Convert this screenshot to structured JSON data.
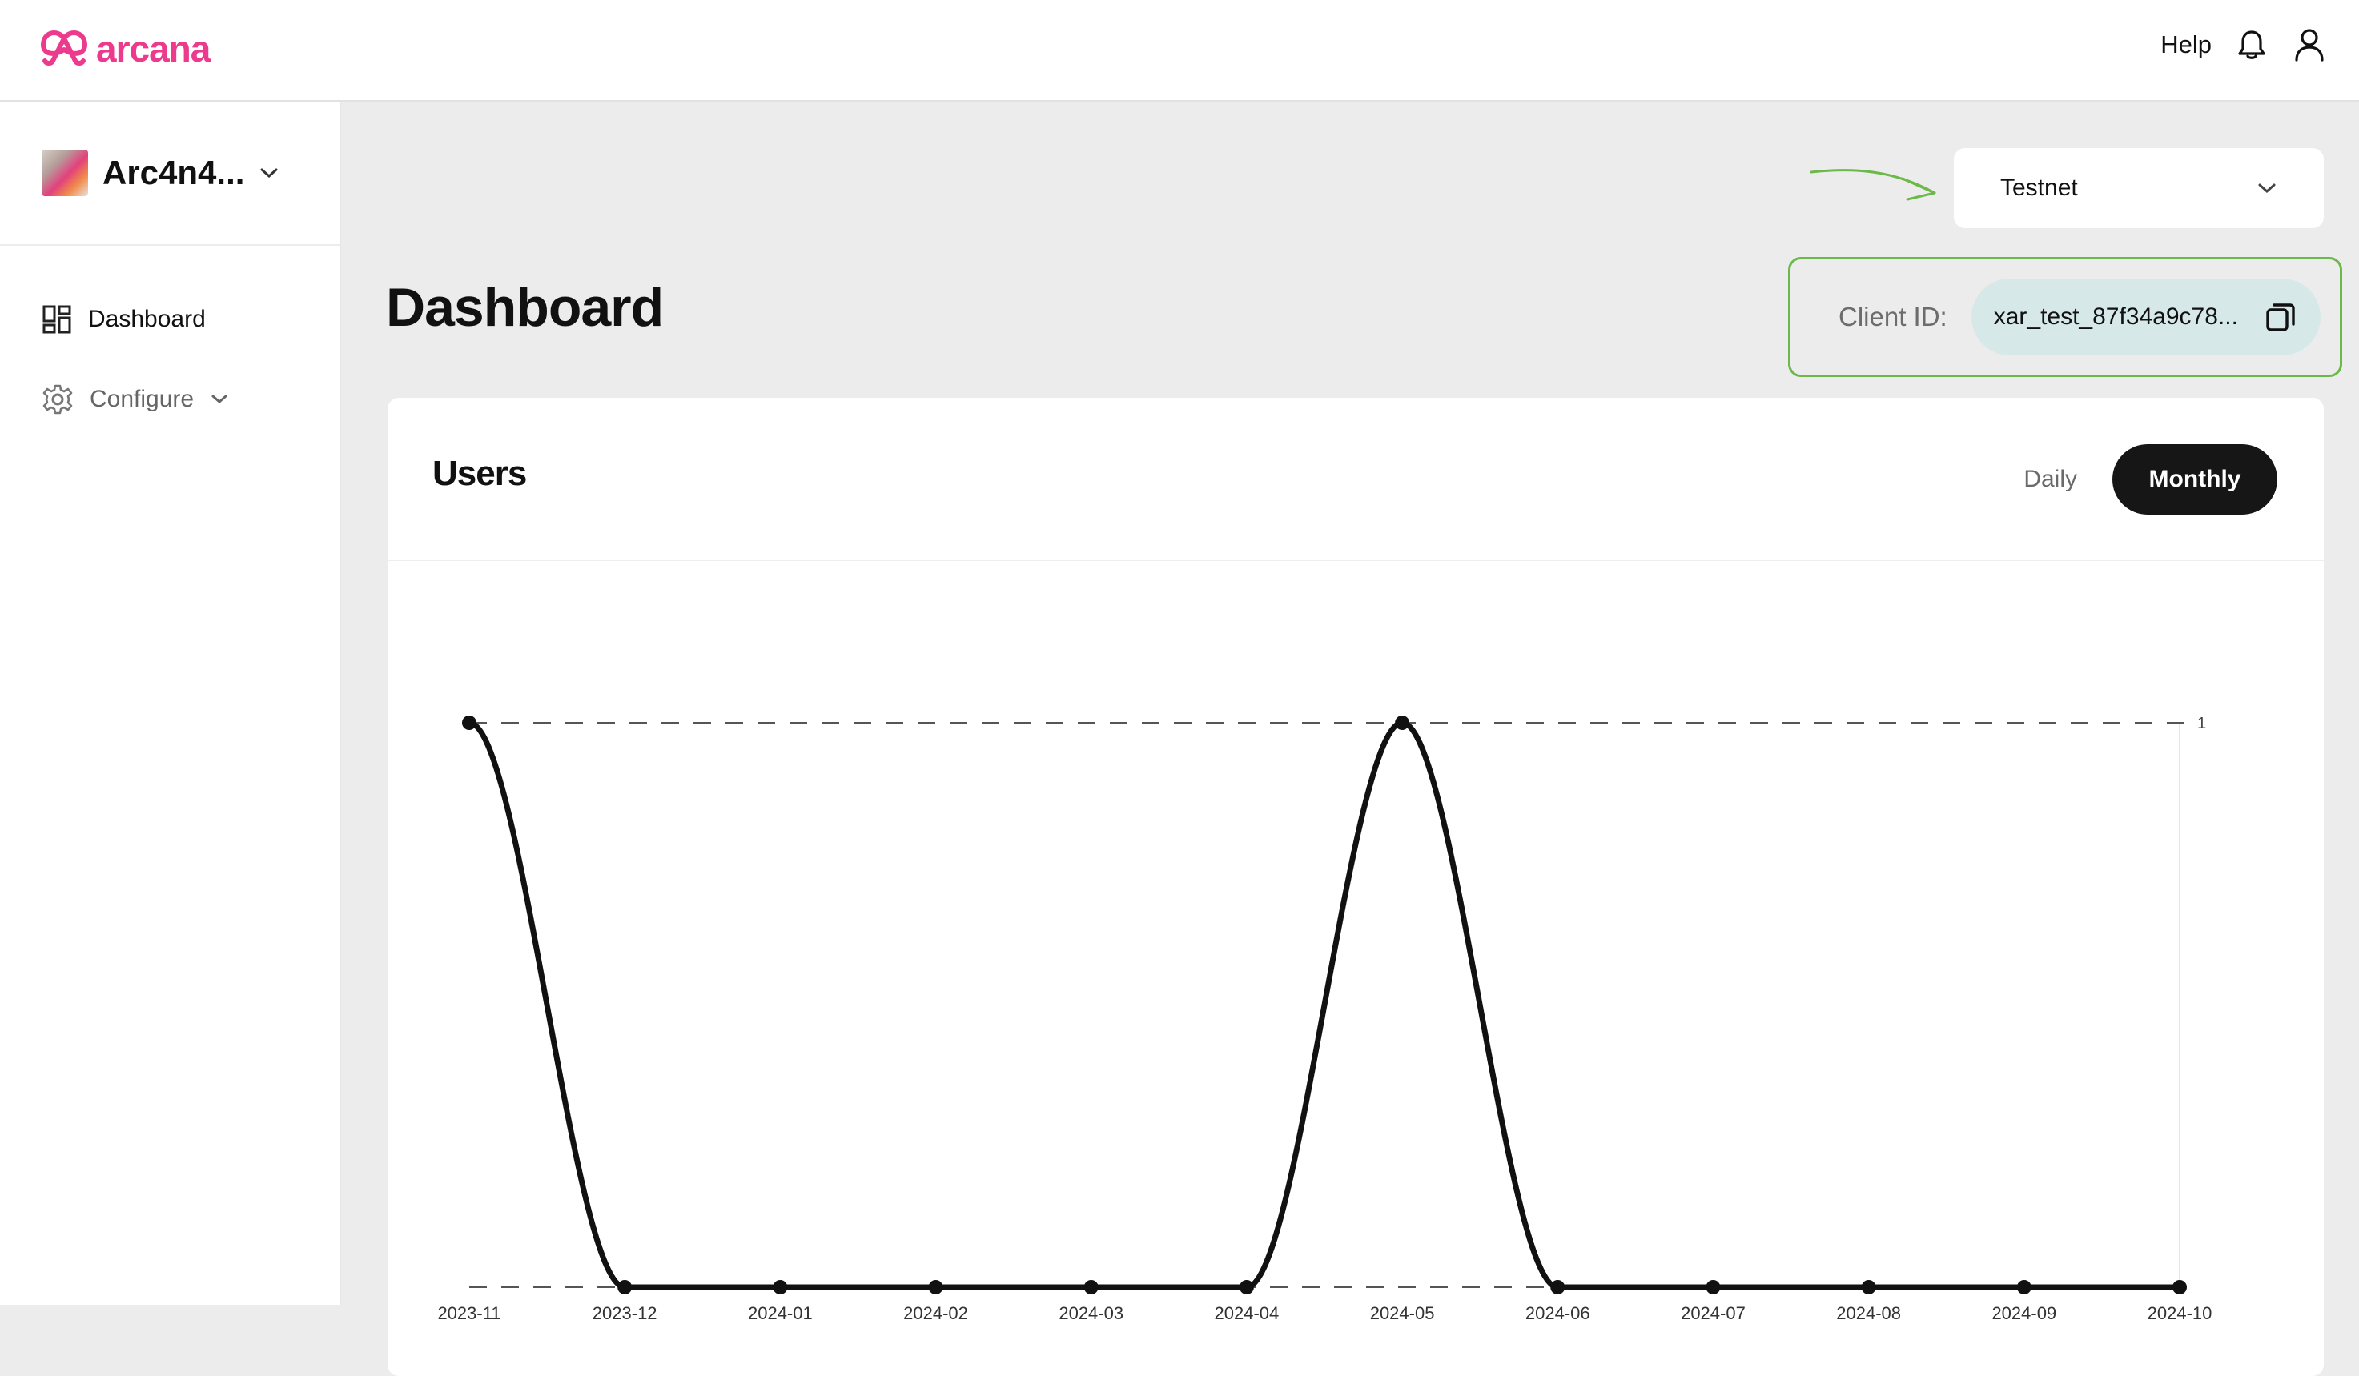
{
  "header": {
    "brand": "arcana",
    "brand_color": "#ec3a8c",
    "help_label": "Help",
    "icons": [
      "bell-icon",
      "user-icon"
    ]
  },
  "sidebar": {
    "project_name": "Arc4n4...",
    "items": [
      {
        "label": "Dashboard",
        "icon": "dashboard-grid-icon"
      },
      {
        "label": "Configure",
        "icon": "gear-icon"
      }
    ]
  },
  "main": {
    "title": "Dashboard",
    "network": {
      "selected": "Testnet"
    },
    "client": {
      "label": "Client ID:",
      "value": "xar_test_87f34a9c78..."
    },
    "accent_color": "#6cb84a"
  },
  "users_card": {
    "title": "Users",
    "toggle": {
      "daily": "Daily",
      "monthly": "Monthly",
      "selected": "Monthly"
    }
  },
  "chart_data": {
    "type": "line",
    "categories": [
      "2023-11",
      "2023-12",
      "2024-01",
      "2024-02",
      "2024-03",
      "2024-04",
      "2024-05",
      "2024-06",
      "2024-07",
      "2024-08",
      "2024-09",
      "2024-10"
    ],
    "series": [
      {
        "values": [
          1,
          0,
          0,
          0,
          0,
          0,
          1,
          0,
          0,
          0,
          0,
          0
        ]
      }
    ],
    "yticks": [
      "1"
    ],
    "ylim": [
      0,
      1
    ],
    "grid": "dashed horizontal",
    "line_color": "#111111"
  }
}
